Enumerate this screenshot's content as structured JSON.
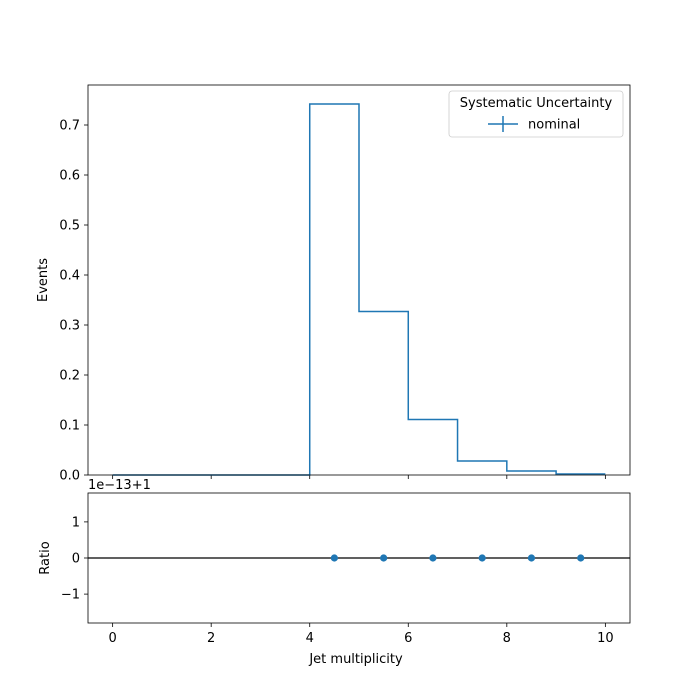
{
  "chart_data": [
    {
      "type": "line",
      "panel": "main",
      "drawstyle": "steps-post",
      "xlabel": "",
      "ylabel": "Events",
      "xlim": [
        -0.5,
        10.5
      ],
      "ylim": [
        0,
        0.78
      ],
      "bin_edges": [
        0,
        1,
        2,
        3,
        4,
        5,
        6,
        7,
        8,
        9,
        10
      ],
      "series": [
        {
          "name": "nominal",
          "values": [
            0,
            0,
            0,
            0,
            0.742,
            0.327,
            0.111,
            0.028,
            0.008,
            0.002
          ],
          "color": "#1f77b4"
        }
      ],
      "yticks": [
        "0.0",
        "0.1",
        "0.2",
        "0.3",
        "0.4",
        "0.5",
        "0.6",
        "0.7"
      ],
      "ytick_values": [
        0,
        0.1,
        0.2,
        0.3,
        0.4,
        0.5,
        0.6,
        0.7
      ],
      "legend": {
        "title": "Systematic Uncertainty",
        "placement": "top-right"
      },
      "grid": false
    },
    {
      "type": "scatter",
      "panel": "ratio",
      "xlabel": "Jet multiplicity",
      "ylabel": "Ratio",
      "xlim": [
        -0.5,
        10.5
      ],
      "ylim": [
        -1.8,
        1.8
      ],
      "offset_text": "1e−13+1",
      "reference_line": 0,
      "x": [
        4.5,
        5.5,
        6.5,
        7.5,
        8.5,
        9.5
      ],
      "y": [
        0,
        0,
        0,
        0,
        0,
        0
      ],
      "color": "#1f77b4",
      "xticks": [
        "0",
        "2",
        "4",
        "6",
        "8",
        "10"
      ],
      "xtick_values": [
        0,
        2,
        4,
        6,
        8,
        10
      ],
      "yticks": [
        "1",
        "0",
        "−1"
      ],
      "ytick_values": [
        1,
        0,
        -1
      ],
      "grid": false
    }
  ]
}
